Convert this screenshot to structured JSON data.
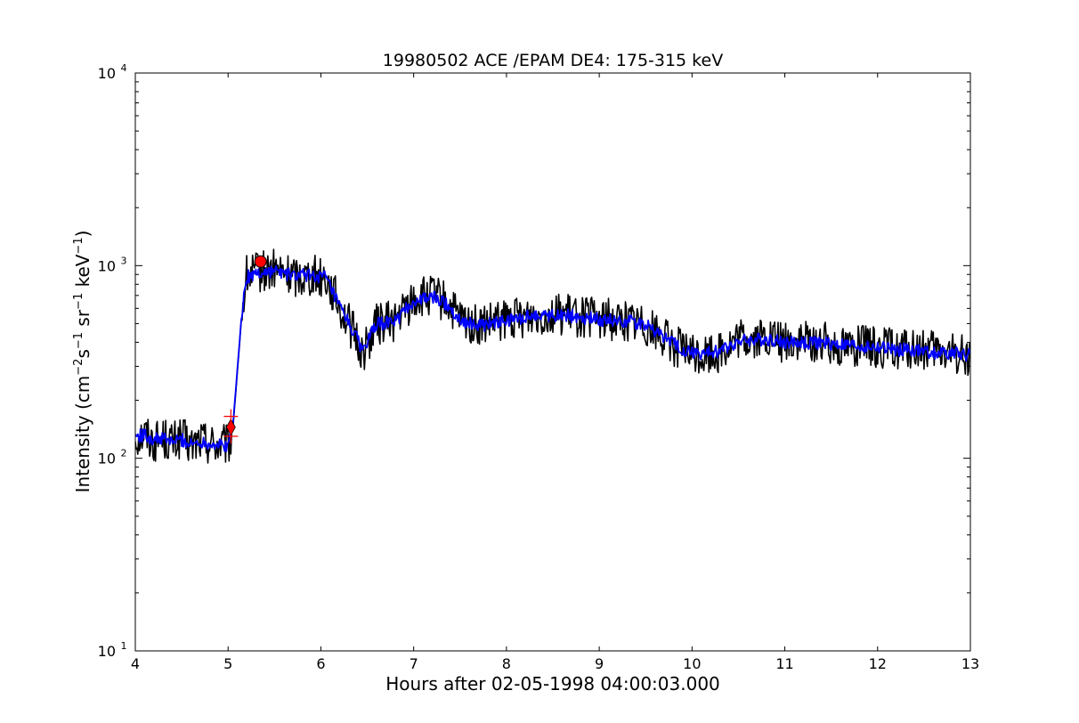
{
  "chart_data": {
    "type": "line",
    "title": "19980502 ACE /EPAM DE4: 175-315 keV",
    "xlabel": "Hours after 02-05-1998 04:00:03.000",
    "ylabel": {
      "prefix": "Intensity (cm",
      "exp1": "−2",
      "mid1": "s",
      "exp2": "−1",
      "mid2": " sr",
      "exp3": "−1",
      "mid3": " keV",
      "exp4": "−1",
      "suffix": ")"
    },
    "xlim": [
      4,
      13
    ],
    "ylim": [
      10,
      10000
    ],
    "yscale": "log",
    "x_ticks": [
      4,
      5,
      6,
      7,
      8,
      9,
      10,
      11,
      12,
      13
    ],
    "y_ticks": [
      {
        "base": "10",
        "exp": "1",
        "value": 10
      },
      {
        "base": "10",
        "exp": "2",
        "value": 100
      },
      {
        "base": "10",
        "exp": "3",
        "value": 1000
      },
      {
        "base": "10",
        "exp": "4",
        "value": 10000
      }
    ],
    "grid": false,
    "series": [
      {
        "role": "raw",
        "color": "#000000",
        "points": [
          [
            4.0,
            128
          ],
          [
            4.1,
            135
          ],
          [
            4.2,
            122
          ],
          [
            4.3,
            128
          ],
          [
            4.4,
            120
          ],
          [
            4.5,
            128
          ],
          [
            4.6,
            115
          ],
          [
            4.7,
            125
          ],
          [
            4.8,
            120
          ],
          [
            4.9,
            118
          ],
          [
            5.0,
            115
          ],
          [
            5.05,
            140
          ],
          [
            5.1,
            280
          ],
          [
            5.15,
            580
          ],
          [
            5.2,
            880
          ],
          [
            5.3,
            920
          ],
          [
            5.5,
            950
          ],
          [
            5.7,
            880
          ],
          [
            5.9,
            900
          ],
          [
            6.05,
            880
          ],
          [
            6.2,
            620
          ],
          [
            6.35,
            450
          ],
          [
            6.45,
            350
          ],
          [
            6.6,
            500
          ],
          [
            6.8,
            520
          ],
          [
            7.0,
            660
          ],
          [
            7.2,
            700
          ],
          [
            7.35,
            640
          ],
          [
            7.5,
            520
          ],
          [
            7.7,
            480
          ],
          [
            8.0,
            520
          ],
          [
            8.3,
            560
          ],
          [
            8.6,
            560
          ],
          [
            9.0,
            530
          ],
          [
            9.3,
            520
          ],
          [
            9.5,
            500
          ],
          [
            9.7,
            420
          ],
          [
            9.9,
            360
          ],
          [
            10.1,
            340
          ],
          [
            10.3,
            360
          ],
          [
            10.5,
            410
          ],
          [
            10.8,
            420
          ],
          [
            11.0,
            400
          ],
          [
            11.3,
            400
          ],
          [
            11.6,
            390
          ],
          [
            11.9,
            380
          ],
          [
            12.2,
            370
          ],
          [
            12.5,
            360
          ],
          [
            12.8,
            350
          ],
          [
            13.0,
            345
          ]
        ]
      },
      {
        "role": "smoothed",
        "color": "#0000ff",
        "points": [
          [
            4.0,
            130
          ],
          [
            4.1,
            132
          ],
          [
            4.2,
            125
          ],
          [
            4.3,
            126
          ],
          [
            4.4,
            122
          ],
          [
            4.5,
            125
          ],
          [
            4.6,
            118
          ],
          [
            4.7,
            122
          ],
          [
            4.8,
            120
          ],
          [
            4.9,
            117
          ],
          [
            5.0,
            116
          ],
          [
            5.05,
            145
          ],
          [
            5.1,
            290
          ],
          [
            5.15,
            590
          ],
          [
            5.2,
            870
          ],
          [
            5.3,
            910
          ],
          [
            5.5,
            940
          ],
          [
            5.7,
            885
          ],
          [
            5.9,
            895
          ],
          [
            6.05,
            870
          ],
          [
            6.2,
            610
          ],
          [
            6.35,
            455
          ],
          [
            6.45,
            365
          ],
          [
            6.6,
            495
          ],
          [
            6.8,
            515
          ],
          [
            7.0,
            650
          ],
          [
            7.2,
            690
          ],
          [
            7.35,
            635
          ],
          [
            7.5,
            525
          ],
          [
            7.7,
            485
          ],
          [
            8.0,
            515
          ],
          [
            8.3,
            555
          ],
          [
            8.6,
            555
          ],
          [
            9.0,
            525
          ],
          [
            9.3,
            515
          ],
          [
            9.5,
            495
          ],
          [
            9.7,
            425
          ],
          [
            9.9,
            365
          ],
          [
            10.1,
            345
          ],
          [
            10.3,
            360
          ],
          [
            10.5,
            405
          ],
          [
            10.8,
            415
          ],
          [
            11.0,
            398
          ],
          [
            11.3,
            398
          ],
          [
            11.6,
            388
          ],
          [
            11.9,
            378
          ],
          [
            12.2,
            368
          ],
          [
            12.5,
            358
          ],
          [
            12.8,
            350
          ],
          [
            13.0,
            345
          ]
        ]
      }
    ],
    "markers": [
      {
        "shape": "circle",
        "color": "#ff0000",
        "x": 5.35,
        "y": 1050
      },
      {
        "shape": "diamond",
        "color": "#ff0000",
        "x": 5.03,
        "y": 145
      },
      {
        "shape": "plus",
        "color": "#ff0000",
        "x": 5.03,
        "y": 165
      },
      {
        "shape": "plus",
        "color": "#ff0000",
        "x": 5.03,
        "y": 130
      }
    ]
  }
}
